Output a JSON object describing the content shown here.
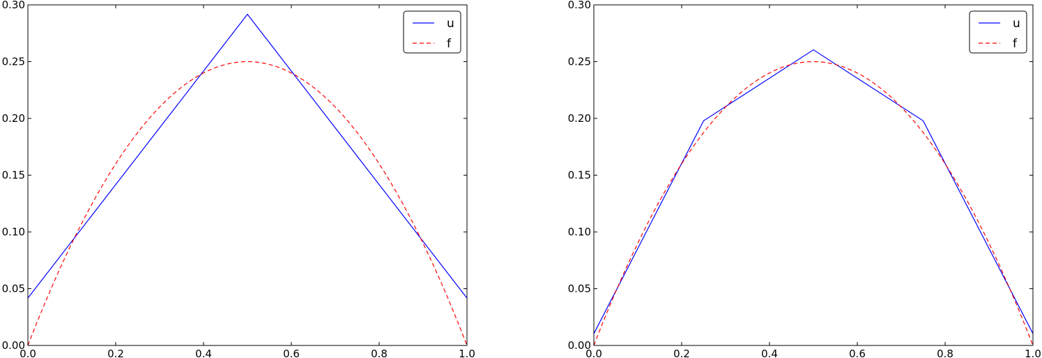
{
  "chart_data": [
    {
      "type": "line",
      "title": "",
      "xlabel": "",
      "ylabel": "",
      "xlim": [
        0.0,
        1.0
      ],
      "ylim": [
        0.0,
        0.3
      ],
      "xticks": [
        "0.0",
        "0.2",
        "0.4",
        "0.6",
        "0.8",
        "1.0"
      ],
      "yticks": [
        "0.00",
        "0.05",
        "0.10",
        "0.15",
        "0.20",
        "0.25",
        "0.30"
      ],
      "grid": false,
      "legend_position": "top-right",
      "series": [
        {
          "name": "u",
          "color": "#0000ff",
          "dash": "solid",
          "x": [
            0.0,
            0.5,
            1.0
          ],
          "y": [
            0.0417,
            0.2917,
            0.0417
          ]
        },
        {
          "name": "f",
          "color": "#ff0000",
          "dash": "dashed",
          "function": "x*(1-x)"
        }
      ]
    },
    {
      "type": "line",
      "title": "",
      "xlabel": "",
      "ylabel": "",
      "xlim": [
        0.0,
        1.0
      ],
      "ylim": [
        0.0,
        0.3
      ],
      "xticks": [
        "0.0",
        "0.2",
        "0.4",
        "0.6",
        "0.8",
        "1.0"
      ],
      "yticks": [
        "0.00",
        "0.05",
        "0.10",
        "0.15",
        "0.20",
        "0.25",
        "0.30"
      ],
      "grid": false,
      "legend_position": "top-right",
      "series": [
        {
          "name": "u",
          "color": "#0000ff",
          "dash": "solid",
          "x": [
            0.0,
            0.25,
            0.5,
            0.75,
            1.0
          ],
          "y": [
            0.0104,
            0.1979,
            0.2604,
            0.1979,
            0.0104
          ]
        },
        {
          "name": "f",
          "color": "#ff0000",
          "dash": "dashed",
          "function": "x*(1-x)"
        }
      ]
    }
  ]
}
